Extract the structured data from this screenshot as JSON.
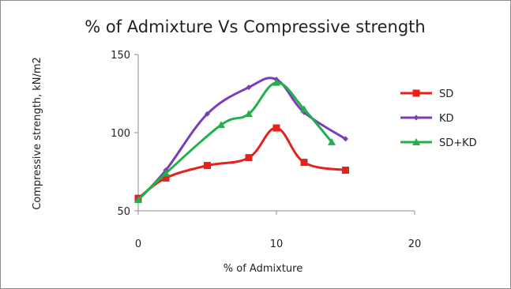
{
  "chart_data": {
    "type": "line",
    "title": "% of Admixture Vs Compressive  strength",
    "xlabel": "% of Admixture",
    "ylabel": "Compressive  strength,  kN/m2",
    "xlim": [
      0,
      20
    ],
    "ylim": [
      50,
      150
    ],
    "xticks": [
      0,
      10,
      20
    ],
    "yticks": [
      50,
      100,
      150
    ],
    "x_tick_labels": [
      "0",
      "10",
      "20"
    ],
    "y_tick_labels": [
      "50",
      "100",
      "150"
    ],
    "grid": false,
    "legend_position": "right",
    "smooth": true,
    "series": [
      {
        "name": "SD",
        "color": "#e8201c",
        "marker": "square",
        "points": [
          [
            0,
            58
          ],
          [
            2,
            71
          ],
          [
            5,
            79
          ],
          [
            8,
            84
          ],
          [
            10,
            103
          ],
          [
            12,
            81
          ],
          [
            15,
            76
          ]
        ]
      },
      {
        "name": "KD",
        "color": "#7a3fb8",
        "marker": "diamond",
        "points": [
          [
            0,
            57
          ],
          [
            2,
            76
          ],
          [
            5,
            112
          ],
          [
            8,
            129
          ],
          [
            10,
            134
          ],
          [
            12,
            113
          ],
          [
            15,
            96
          ]
        ]
      },
      {
        "name": "SD+KD",
        "color": "#21b04b",
        "marker": "triangle",
        "points": [
          [
            0,
            57
          ],
          [
            2,
            74
          ],
          [
            6,
            105
          ],
          [
            8,
            112
          ],
          [
            10,
            132
          ],
          [
            12,
            115
          ],
          [
            14,
            94
          ]
        ]
      }
    ]
  }
}
